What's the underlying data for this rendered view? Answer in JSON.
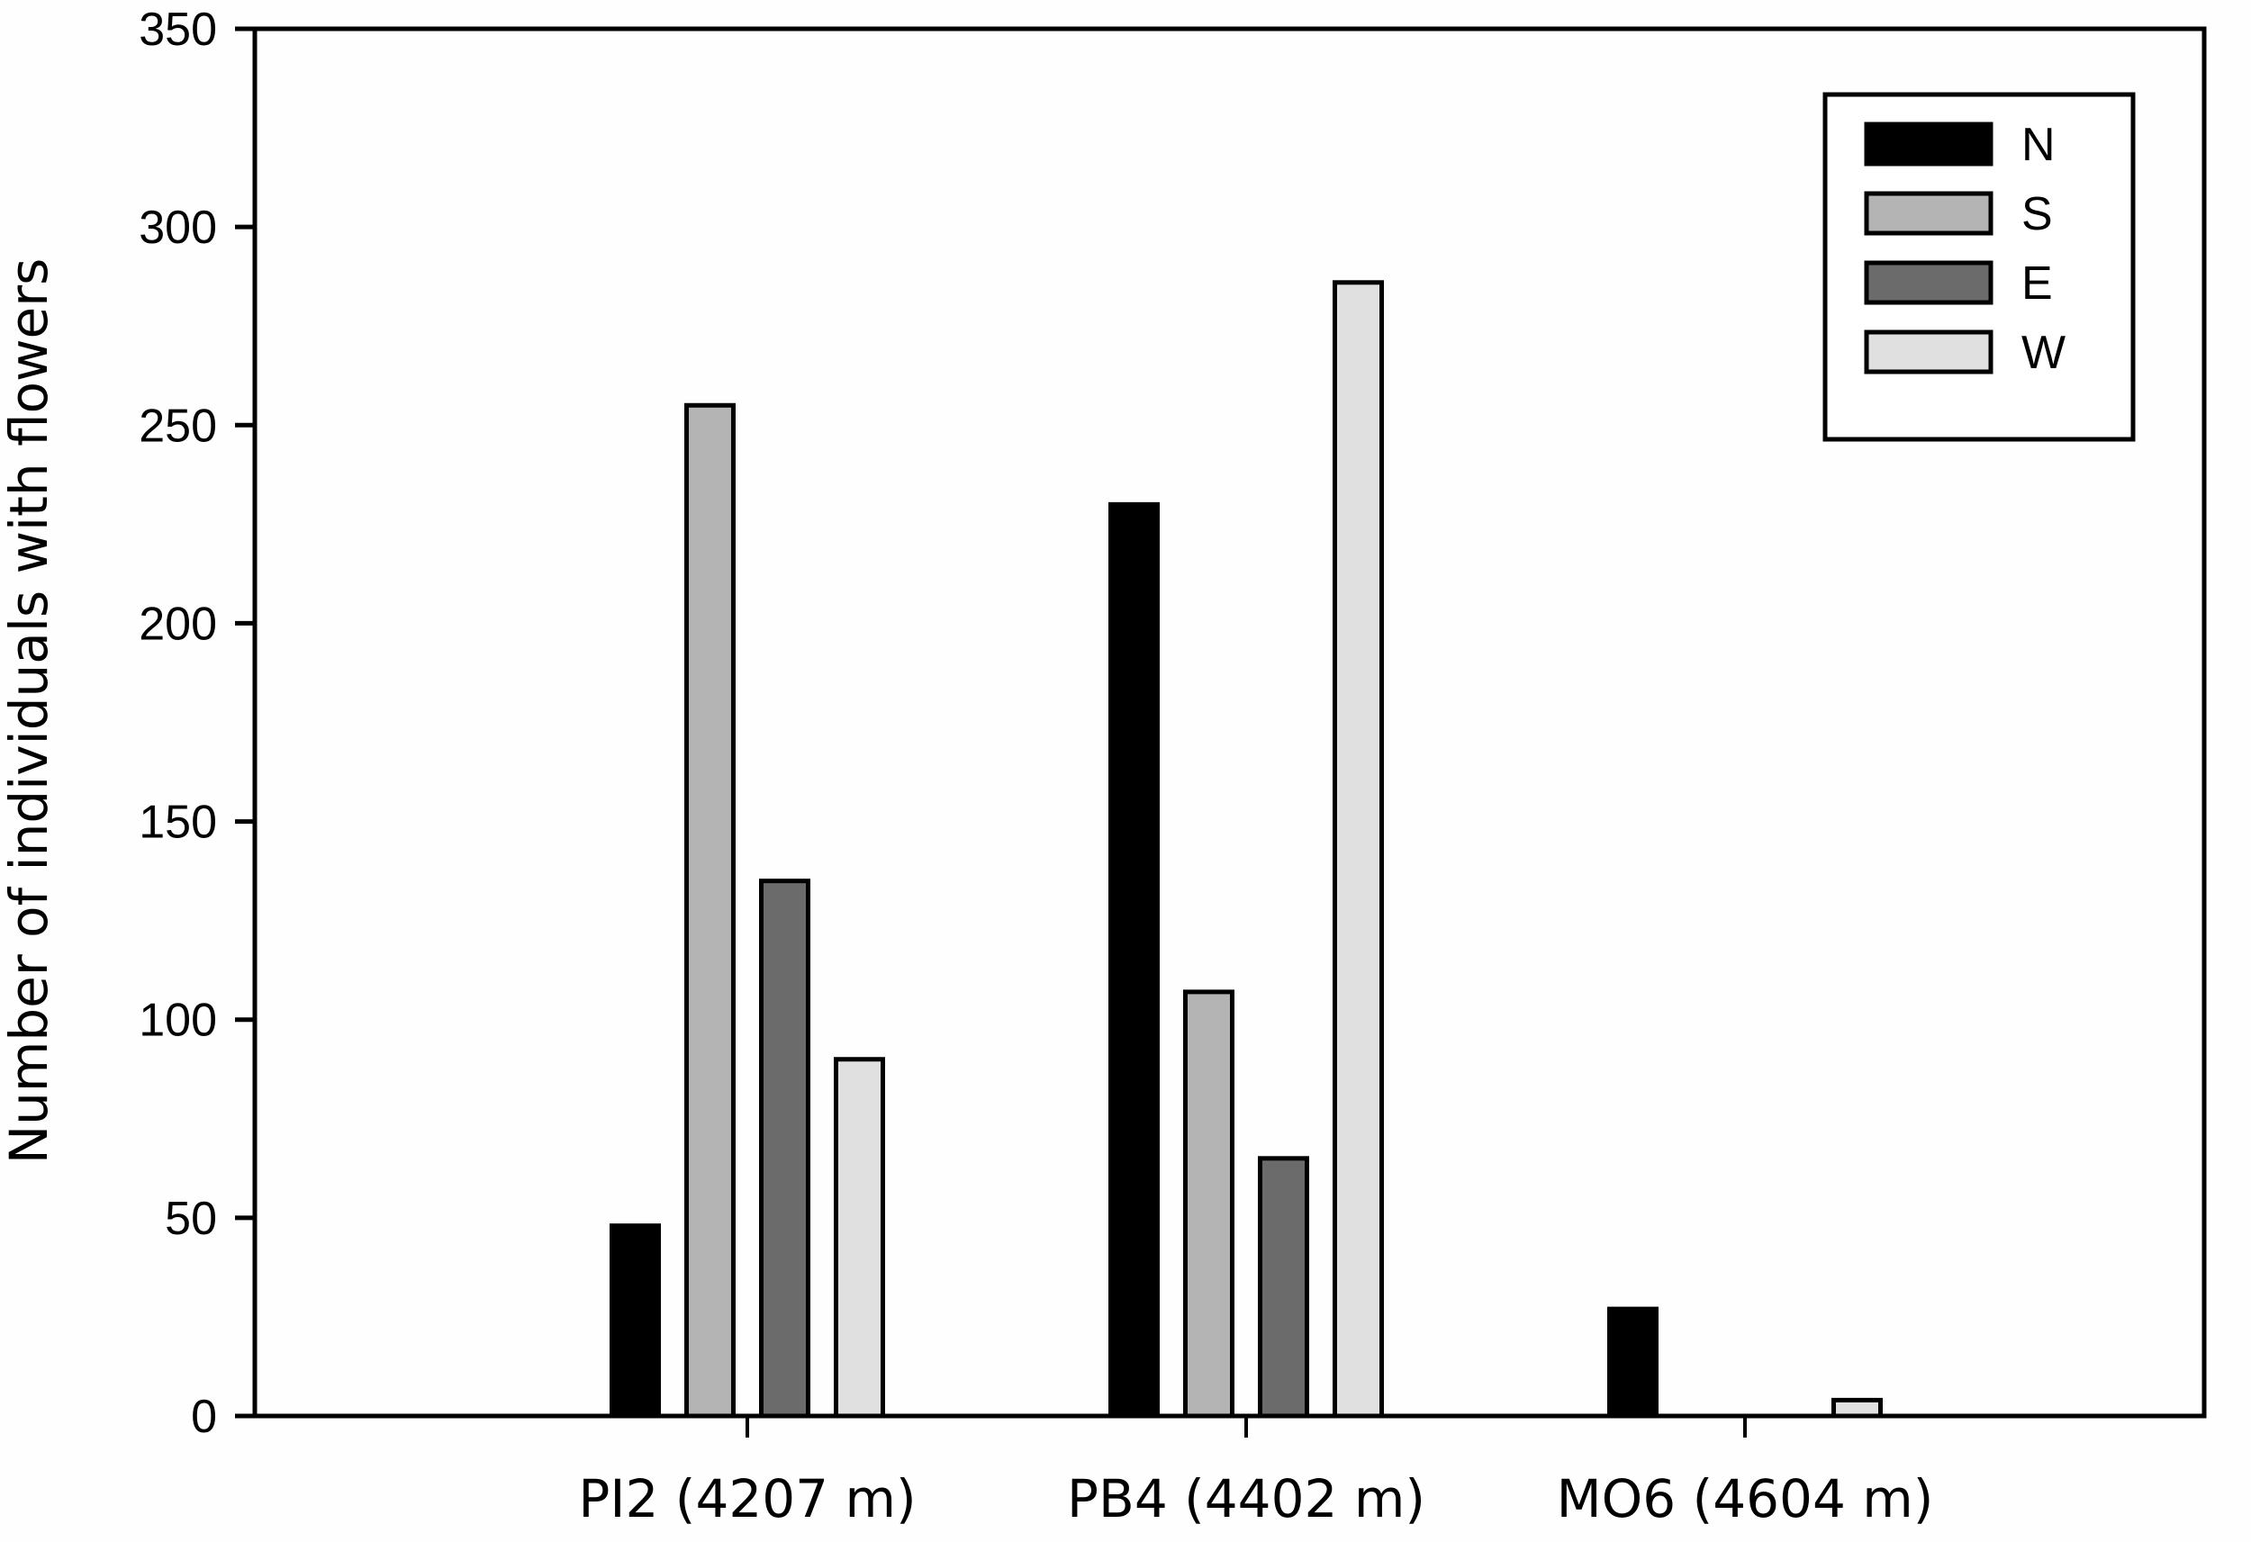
{
  "chart_data": {
    "type": "bar",
    "title": "",
    "xlabel": "",
    "ylabel": "Number of individuals with flowers",
    "ylim": [
      0,
      350
    ],
    "yticks": [
      0,
      50,
      100,
      150,
      200,
      250,
      300,
      350
    ],
    "grid": false,
    "legend_position": "upper right",
    "categories": [
      "PI2 (4207 m)",
      "PB4 (4402 m)",
      "MO6 (4604 m)"
    ],
    "series": [
      {
        "name": "N",
        "color": "#000000",
        "values": [
          48,
          230,
          27
        ]
      },
      {
        "name": "S",
        "color": "#b4b4b4",
        "values": [
          255,
          107,
          0
        ]
      },
      {
        "name": "E",
        "color": "#6b6b6b",
        "values": [
          135,
          65,
          0
        ]
      },
      {
        "name": "W",
        "color": "#e0e0e0",
        "values": [
          90,
          286,
          4
        ]
      }
    ]
  }
}
